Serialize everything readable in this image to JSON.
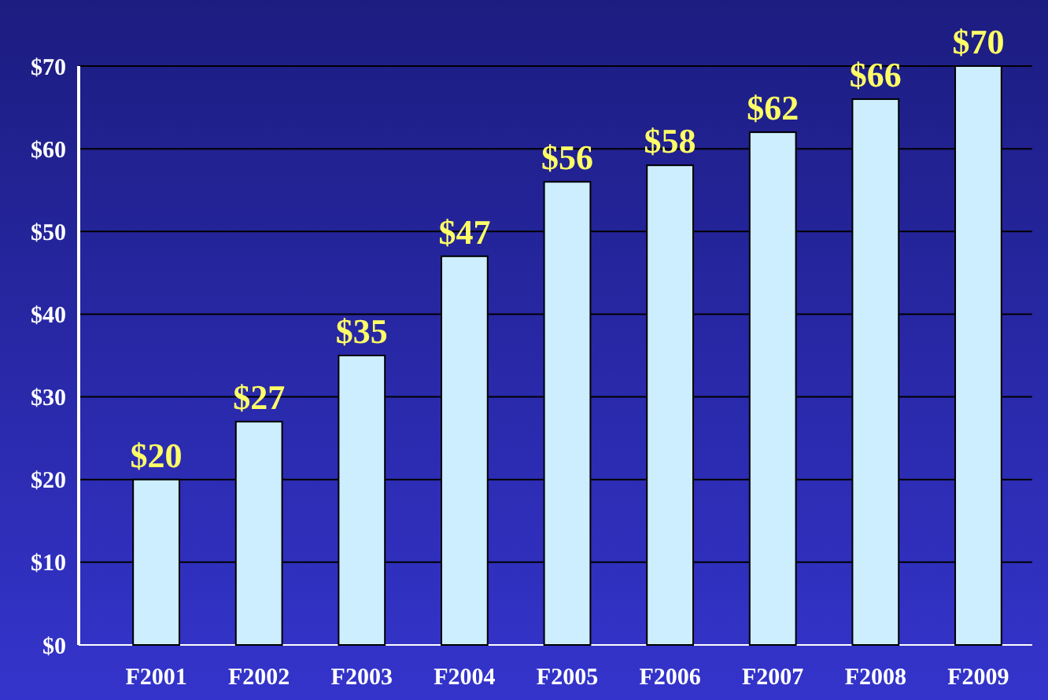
{
  "chart_data": {
    "type": "bar",
    "categories": [
      "F2001",
      "F2002",
      "F2003",
      "F2004",
      "F2005",
      "F2006",
      "F2007",
      "F2008",
      "F2009"
    ],
    "values": [
      20,
      27,
      35,
      47,
      56,
      58,
      62,
      66,
      70
    ],
    "value_labels": [
      "$20",
      "$27",
      "$35",
      "$47",
      "$56",
      "$58",
      "$62",
      "$66",
      "$70"
    ],
    "color": "#cceeff",
    "ylim": [
      0,
      70
    ],
    "yticks": [
      {
        "value": 0,
        "label": "$0"
      },
      {
        "value": 10,
        "label": "$10"
      },
      {
        "value": 20,
        "label": "$20"
      },
      {
        "value": 30,
        "label": "$30"
      },
      {
        "value": 40,
        "label": "$40"
      },
      {
        "value": 50,
        "label": "$50"
      },
      {
        "value": 60,
        "label": "$60"
      },
      {
        "value": 70,
        "label": "$70"
      }
    ],
    "grid": "y"
  }
}
